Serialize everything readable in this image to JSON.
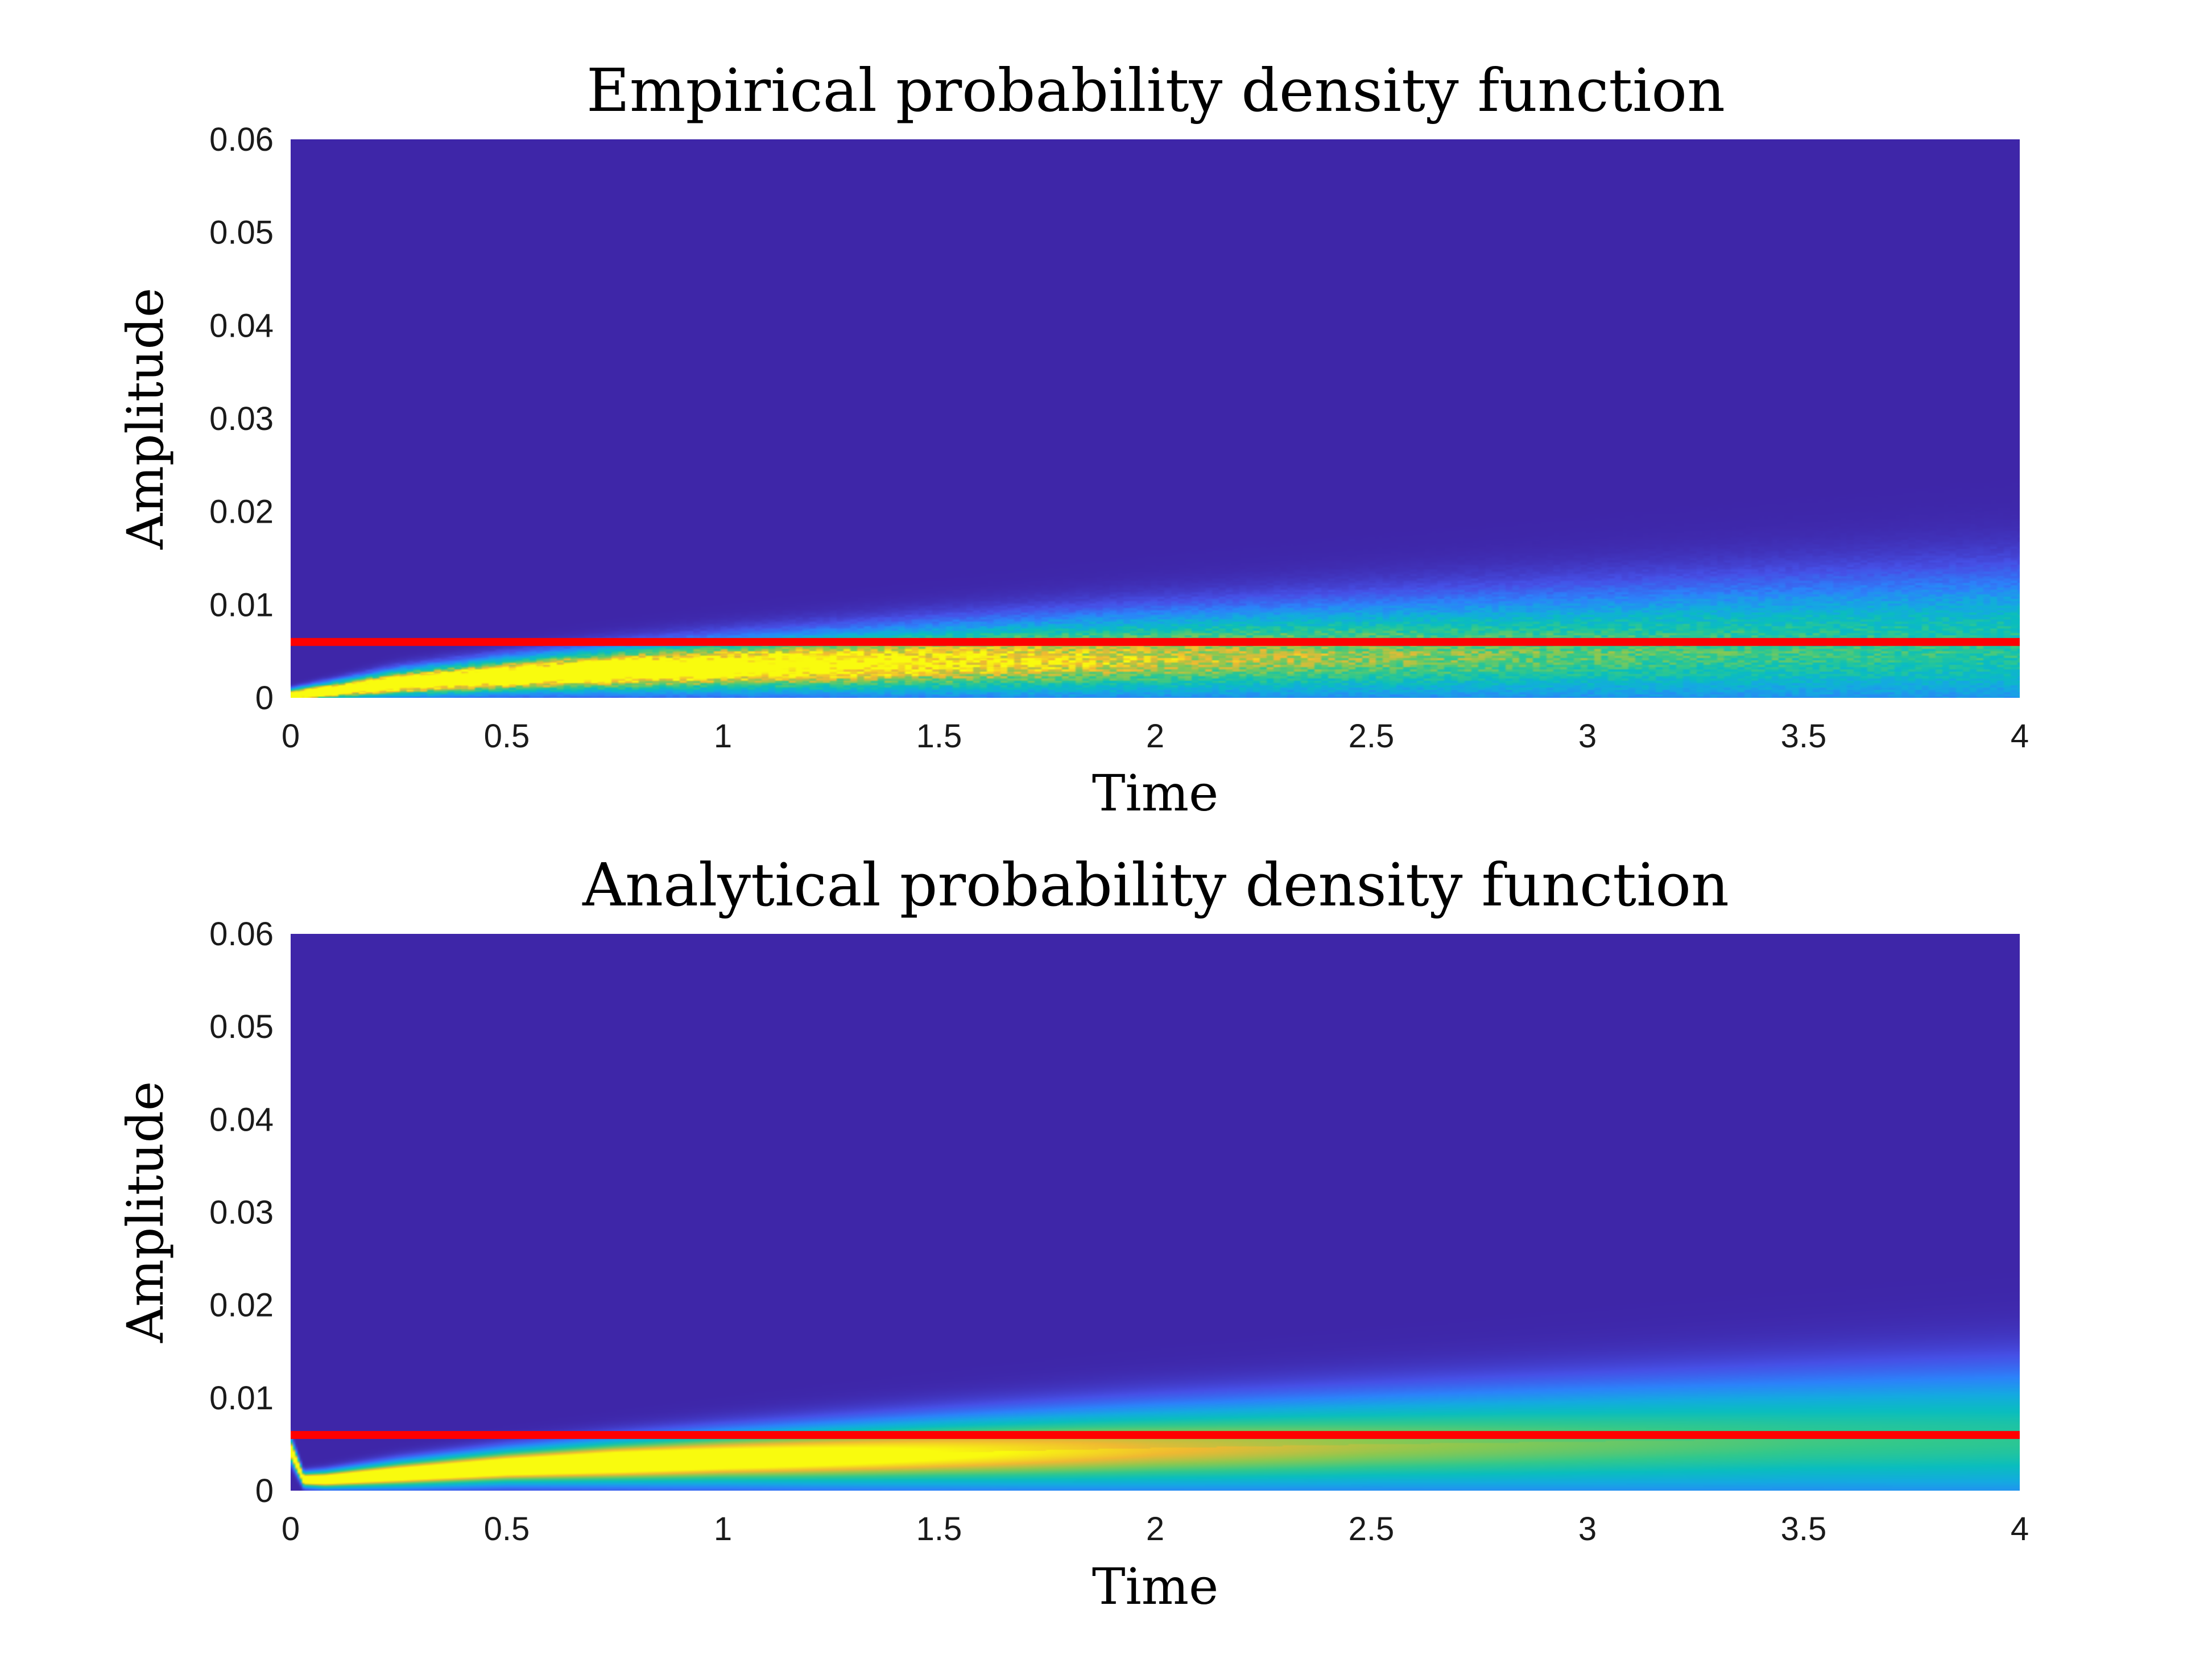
{
  "chart_data": [
    {
      "type": "heatmap",
      "title": "Empirical probability density function",
      "xlabel": "Time",
      "ylabel": "Amplitude",
      "xlim": [
        0,
        4
      ],
      "ylim": [
        0,
        0.06
      ],
      "xticks": [
        0,
        0.5,
        1,
        1.5,
        2,
        2.5,
        3,
        3.5,
        4
      ],
      "xtick_labels": [
        "0",
        "0.5",
        "1",
        "1.5",
        "2",
        "2.5",
        "3",
        "3.5",
        "4"
      ],
      "yticks": [
        0,
        0.01,
        0.02,
        0.03,
        0.04,
        0.05,
        0.06
      ],
      "ytick_labels": [
        "0",
        "0.01",
        "0.02",
        "0.03",
        "0.04",
        "0.05",
        "0.06"
      ],
      "colormap": "parula",
      "noisy": true,
      "reference_line": {
        "y": 0.006,
        "color": "#ff0000"
      },
      "density_profile": {
        "time": [
          0,
          0.25,
          0.5,
          0.75,
          1,
          1.5,
          2,
          2.5,
          3,
          3.5,
          4
        ],
        "peak_amplitude": [
          0.0003,
          0.0016,
          0.0024,
          0.003,
          0.0034,
          0.004,
          0.0045,
          0.0049,
          0.0052,
          0.0055,
          0.0057
        ],
        "spread": [
          0.0004,
          0.0009,
          0.0012,
          0.0015,
          0.0018,
          0.0024,
          0.003,
          0.0035,
          0.004,
          0.0045,
          0.005
        ],
        "peak_intensity": [
          1,
          1,
          1,
          1,
          0.92,
          0.78,
          0.66,
          0.58,
          0.52,
          0.48,
          0.45
        ]
      }
    },
    {
      "type": "heatmap",
      "title": "Analytical probability density function",
      "xlabel": "Time",
      "ylabel": "Amplitude",
      "xlim": [
        0,
        4
      ],
      "ylim": [
        0,
        0.06
      ],
      "xticks": [
        0,
        0.5,
        1,
        1.5,
        2,
        2.5,
        3,
        3.5,
        4
      ],
      "xtick_labels": [
        "0",
        "0.5",
        "1",
        "1.5",
        "2",
        "2.5",
        "3",
        "3.5",
        "4"
      ],
      "yticks": [
        0,
        0.01,
        0.02,
        0.03,
        0.04,
        0.05,
        0.06
      ],
      "ytick_labels": [
        "0",
        "0.01",
        "0.02",
        "0.03",
        "0.04",
        "0.05",
        "0.06"
      ],
      "colormap": "parula",
      "noisy": false,
      "reference_line": {
        "y": 0.006,
        "color": "#ff0000"
      },
      "density_profile": {
        "time": [
          0,
          0.03,
          0.08,
          0.25,
          0.5,
          0.75,
          1,
          1.5,
          2,
          2.5,
          3,
          3.5,
          4
        ],
        "peak_amplitude": [
          0.0045,
          0.0012,
          0.0012,
          0.0018,
          0.0026,
          0.0031,
          0.0035,
          0.0041,
          0.0046,
          0.005,
          0.0053,
          0.0056,
          0.0058
        ],
        "spread": [
          0.0008,
          0.0005,
          0.0006,
          0.0009,
          0.0012,
          0.0015,
          0.0018,
          0.0024,
          0.003,
          0.0035,
          0.004,
          0.0045,
          0.005
        ],
        "peak_intensity": [
          1,
          1,
          1,
          1,
          1,
          1,
          0.92,
          0.8,
          0.68,
          0.6,
          0.54,
          0.49,
          0.46
        ]
      }
    }
  ]
}
